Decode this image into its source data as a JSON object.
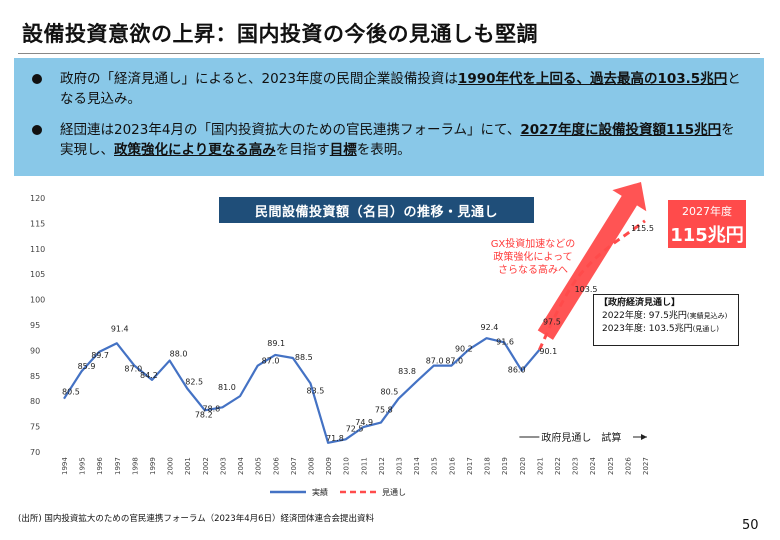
{
  "title": "設備投資意欲の上昇：国内投資の今後の見通しも堅調",
  "bullets": [
    {
      "pre": "政府の「経済見通し」によると、2023年度の民間企業設備投資は",
      "hl": "1990年代を上回る、過去最高の103.5兆円",
      "post": "となる見込み。"
    },
    {
      "pre": "経団連は2023年4月の「国内投資拡大のための官民連携フォーラム」にて、",
      "hl": "2027年度に設備投資額115兆円",
      "mid": "を実現し、",
      "hl2": "政策強化により更なる高み",
      "mid2": "を目指す",
      "hl3": "目標",
      "post": "を表明。"
    }
  ],
  "chart_data": {
    "type": "line",
    "title": "民間設備投資額（名目）の推移・見通し",
    "ylim": [
      70,
      120
    ],
    "yticks": [
      70,
      75,
      80,
      85,
      90,
      95,
      100,
      105,
      110,
      115,
      120
    ],
    "x": [
      "1994",
      "1995",
      "1996",
      "1997",
      "1998",
      "1999",
      "2000",
      "2001",
      "2002",
      "2003",
      "2004",
      "2005",
      "2006",
      "2007",
      "2008",
      "2009",
      "2010",
      "2011",
      "2012",
      "2013",
      "2014",
      "2015",
      "2016",
      "2017",
      "2018",
      "2019",
      "2020",
      "2021",
      "2022",
      "2023",
      "2024",
      "2025",
      "2026",
      "2027"
    ],
    "series": [
      {
        "name": "実績",
        "color": "#4472c4",
        "x": [
          "1994",
          "1995",
          "1996",
          "1997",
          "1998",
          "1999",
          "2000",
          "2001",
          "2002",
          "2003",
          "2004",
          "2005",
          "2006",
          "2007",
          "2008",
          "2009",
          "2010",
          "2011",
          "2012",
          "2013",
          "2014",
          "2015",
          "2016",
          "2017",
          "2018",
          "2019",
          "2020",
          "2021"
        ],
        "values": [
          80.5,
          85.9,
          89.7,
          91.4,
          87.0,
          84.2,
          88.0,
          82.5,
          78.2,
          78.8,
          81.0,
          87.0,
          89.1,
          88.5,
          83.5,
          71.8,
          72.5,
          74.9,
          75.8,
          80.5,
          83.8,
          87.0,
          87.0,
          90.2,
          92.4,
          91.6,
          86.0,
          90.1
        ]
      },
      {
        "name": "見通し",
        "color": "#ff4b4b",
        "x": [
          "2021",
          "2022",
          "2023",
          "2024",
          "2025",
          "2026",
          "2027"
        ],
        "values": [
          90.1,
          97.5,
          103.5,
          107.5,
          110.5,
          113.0,
          115.5
        ]
      }
    ],
    "data_labels": [
      {
        "x": "1994",
        "text": "80.5"
      },
      {
        "x": "1995",
        "text": "85.9"
      },
      {
        "x": "1996",
        "text": "89.7"
      },
      {
        "x": "1997",
        "text": "91.4"
      },
      {
        "x": "1998",
        "text": "87.0"
      },
      {
        "x": "1999",
        "text": "84.2"
      },
      {
        "x": "2000",
        "text": "88.0"
      },
      {
        "x": "2001",
        "text": "82.5"
      },
      {
        "x": "2002",
        "text": "78.2"
      },
      {
        "x": "2003",
        "text": "78.8"
      },
      {
        "x": "2004",
        "text": "81.0"
      },
      {
        "x": "2005",
        "text": "87.0"
      },
      {
        "x": "2006",
        "text": "89.1"
      },
      {
        "x": "2007",
        "text": "88.5"
      },
      {
        "x": "2008",
        "text": "83.5"
      },
      {
        "x": "2009",
        "text": "71.8"
      },
      {
        "x": "2010",
        "text": "72.5"
      },
      {
        "x": "2011",
        "text": "74.9"
      },
      {
        "x": "2012",
        "text": "75.8"
      },
      {
        "x": "2013",
        "text": "80.5"
      },
      {
        "x": "2014",
        "text": "83.8"
      },
      {
        "x": "2015",
        "text": "87.0"
      },
      {
        "x": "2016",
        "text": "87.0"
      },
      {
        "x": "2017",
        "text": "90.2"
      },
      {
        "x": "2018",
        "text": "92.4"
      },
      {
        "x": "2019",
        "text": "91.6"
      },
      {
        "x": "2020",
        "text": "86.0"
      },
      {
        "x": "2021",
        "text": "90.1"
      },
      {
        "x": "2022",
        "text": "97.5"
      },
      {
        "x": "2023",
        "text": "103.5"
      },
      {
        "x": "2027",
        "text": "115.5"
      }
    ],
    "legend": [
      {
        "label": "実績",
        "style": "solid",
        "color": "#4472c4"
      },
      {
        "label": "見通し",
        "style": "dashed",
        "color": "#ff4b4b"
      }
    ],
    "legend_position": "bottom"
  },
  "period_label": "政府見通し　試算",
  "badge": {
    "year": "2027年度",
    "value": "115兆円"
  },
  "gx_note": [
    "GX投資加速などの",
    "政策強化によって",
    "さらなる高みへ"
  ],
  "govt_box": {
    "title": "【政府経済見通し】",
    "row1_pre": "2022年度: 97.5兆円",
    "row1_note": "(実績見込み)",
    "row2_pre": "2023年度: 103.5兆円",
    "row2_note": "(見通し)"
  },
  "source": "(出所) 国内投資拡大のための官民連携フォーラム（2023年4月6日）経済団体連合会提出資料",
  "page_number": "50",
  "colors": {
    "accent_blue": "#89c8e8",
    "title_bar": "#1f4e79",
    "actual_line": "#4472c4",
    "forecast": "#ff4b4b"
  }
}
